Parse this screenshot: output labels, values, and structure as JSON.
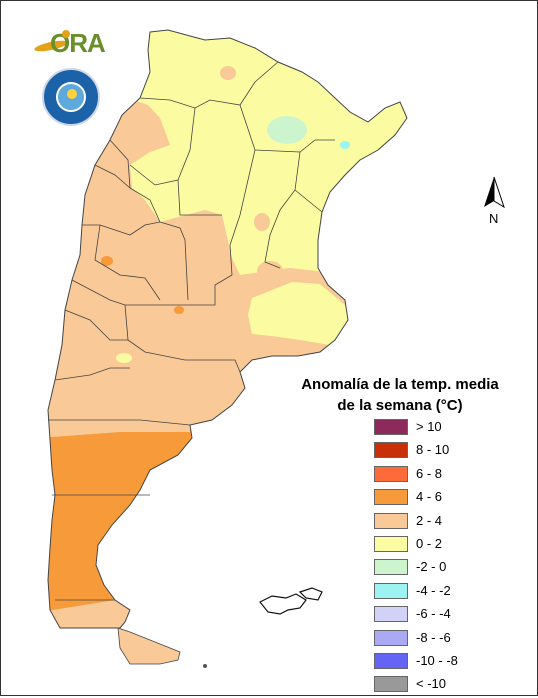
{
  "legend": {
    "title_line1": "Anomalía de la temp. media",
    "title_line2": "de la semana (°C)",
    "items": [
      {
        "label": "> 10",
        "color": "#8b2a5b"
      },
      {
        "label": "8 - 10",
        "color": "#c8300a"
      },
      {
        "label": "6 - 8",
        "color": "#ff6a3a"
      },
      {
        "label": "4 - 6",
        "color": "#f79a3a"
      },
      {
        "label": "2 - 4",
        "color": "#f9c997"
      },
      {
        "label": "0 - 2",
        "color": "#fbfca1"
      },
      {
        "label": "-2 - 0",
        "color": "#cdf5cd"
      },
      {
        "label": "-4 - -2",
        "color": "#9cf3f1"
      },
      {
        "label": "-6 - -4",
        "color": "#d2d2f7"
      },
      {
        "label": "-8 - -6",
        "color": "#a9a9f4"
      },
      {
        "label": "-10 - -8",
        "color": "#6464f5"
      },
      {
        "label": "< -10",
        "color": "#999999"
      }
    ]
  },
  "north_arrow": {
    "label": "N"
  },
  "logos": {
    "ora": "ORA",
    "smn": "SMN seal"
  }
}
